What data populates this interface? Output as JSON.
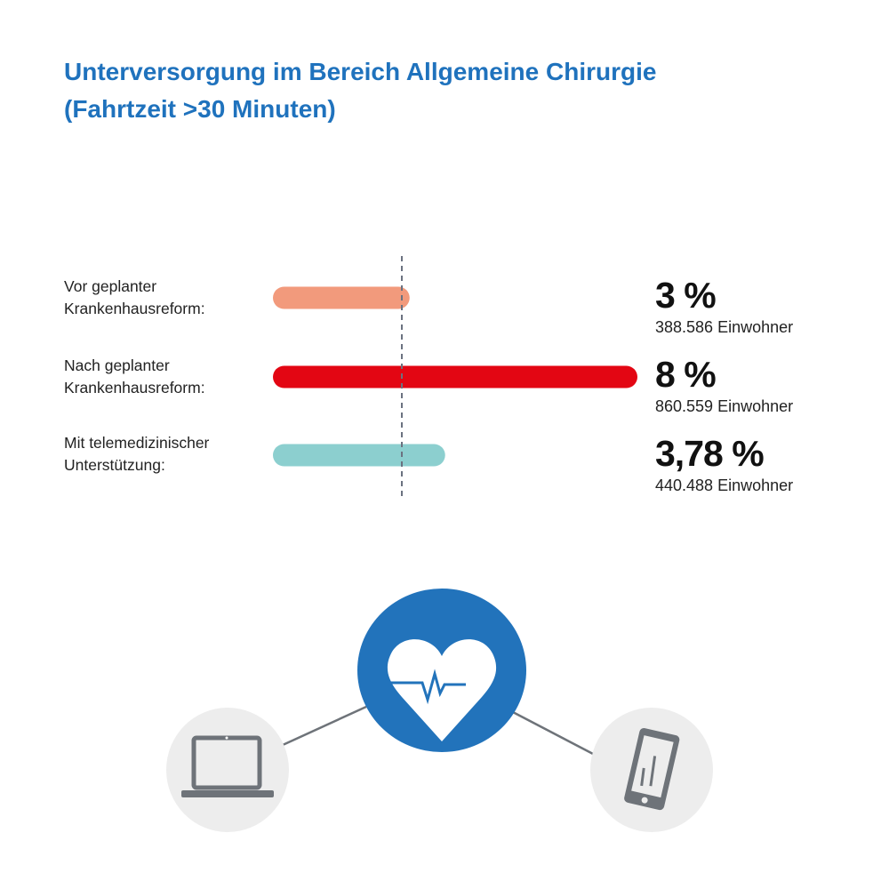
{
  "chart_data": {
    "type": "bar",
    "orientation": "horizontal",
    "title": "Unterversorgung im Bereich Allgemeine Chirurgie",
    "subtitle": "(Fahrtzeit >30 Minuten)",
    "categories": [
      "Vor geplanter Krankenhausreform:",
      "Nach geplanter Krankenhausreform:",
      "Mit telemedizinischer Unterstützung:"
    ],
    "category_lines": [
      [
        "Vor geplanter",
        "Krankenhausreform:"
      ],
      [
        "Nach geplanter",
        "Krankenhausreform:"
      ],
      [
        "Mit telemedizinischer",
        "Unterstützung:"
      ]
    ],
    "values": [
      3,
      8,
      3.78
    ],
    "value_labels": [
      "3 %",
      "8 %",
      "3,78 %"
    ],
    "population_labels": [
      "388.586 Einwohner",
      "860.559 Einwohner",
      "440.488 Einwohner"
    ],
    "colors": [
      "#f29a7c",
      "#e30613",
      "#8ccfcf"
    ],
    "xlim": [
      0,
      8
    ],
    "grid": false
  },
  "colors": {
    "title": "#1f72bd",
    "hub": "#2273bb",
    "device_bg": "#ededed",
    "device_icon": "#6e7379"
  },
  "icons": [
    "heart-pulse-icon",
    "laptop-icon",
    "smartphone-icon"
  ]
}
